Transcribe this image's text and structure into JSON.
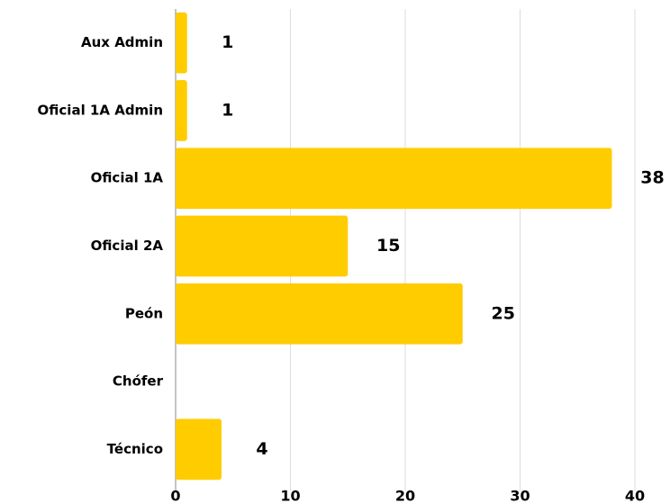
{
  "chart_data": {
    "type": "bar",
    "orientation": "horizontal",
    "categories": [
      "Aux Admin",
      "Oficial 1A Admin",
      "Oficial 1A",
      "Oficial 2A",
      "Peón",
      "Chófer",
      "Técnico"
    ],
    "values": [
      1,
      1,
      38,
      15,
      25,
      null,
      4
    ],
    "color": "#ffcc00",
    "xlim": [
      0,
      40
    ],
    "xticks": [
      0,
      10,
      20,
      30,
      40
    ],
    "grid": true
  }
}
